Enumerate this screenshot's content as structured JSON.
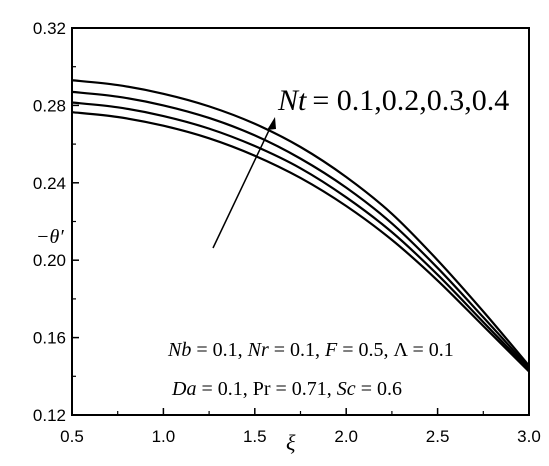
{
  "chart_data": {
    "type": "line",
    "title": "",
    "xlabel": "ξ",
    "ylabel": "−θ′",
    "xlim": [
      0.5,
      3.0
    ],
    "ylim": [
      0.12,
      0.32
    ],
    "xticks": [
      "0.5",
      "1.0",
      "1.5",
      "2.0",
      "2.5",
      "3.0"
    ],
    "yticks": [
      "0.12",
      "0.16",
      "0.20",
      "0.24",
      "0.28",
      "0.32"
    ],
    "grid": false,
    "x": [
      0.5,
      0.75,
      1.0,
      1.25,
      1.5,
      1.75,
      2.0,
      2.25,
      2.5,
      2.75,
      3.0
    ],
    "series": [
      {
        "name": "Nt = 0.1",
        "values": [
          0.2765,
          0.274,
          0.2695,
          0.263,
          0.254,
          0.2425,
          0.228,
          0.2105,
          0.1895,
          0.166,
          0.1425
        ]
      },
      {
        "name": "Nt = 0.2",
        "values": [
          0.2815,
          0.279,
          0.2745,
          0.268,
          0.259,
          0.2475,
          0.2325,
          0.2145,
          0.1925,
          0.168,
          0.1435
        ]
      },
      {
        "name": "Nt = 0.3",
        "values": [
          0.287,
          0.2845,
          0.28,
          0.2735,
          0.2645,
          0.2525,
          0.2375,
          0.219,
          0.196,
          0.1705,
          0.1445
        ]
      },
      {
        "name": "Nt = 0.4",
        "values": [
          0.293,
          0.2905,
          0.286,
          0.2795,
          0.2705,
          0.2585,
          0.243,
          0.224,
          0.2,
          0.1735,
          0.1455
        ]
      }
    ],
    "annotations": {
      "nt_var": "Nt",
      "nt_values": "= 0.1,0.2,0.3,0.4",
      "param_line1": [
        {
          "text": "Nb",
          "italic": true
        },
        {
          "text": " = 0.1, ",
          "italic": false
        },
        {
          "text": "Nr",
          "italic": true
        },
        {
          "text": " = 0.1, ",
          "italic": false
        },
        {
          "text": "F",
          "italic": true
        },
        {
          "text": " = 0.5, Λ = 0.1",
          "italic": false
        }
      ],
      "param_line2": [
        {
          "text": "Da",
          "italic": true
        },
        {
          "text": " = 0.1, Pr = 0.71, ",
          "italic": false
        },
        {
          "text": "Sc",
          "italic": true
        },
        {
          "text": " = 0.6",
          "italic": false
        }
      ]
    },
    "arrow_direction": "increasing Nt, pointing up-right toward curves"
  }
}
